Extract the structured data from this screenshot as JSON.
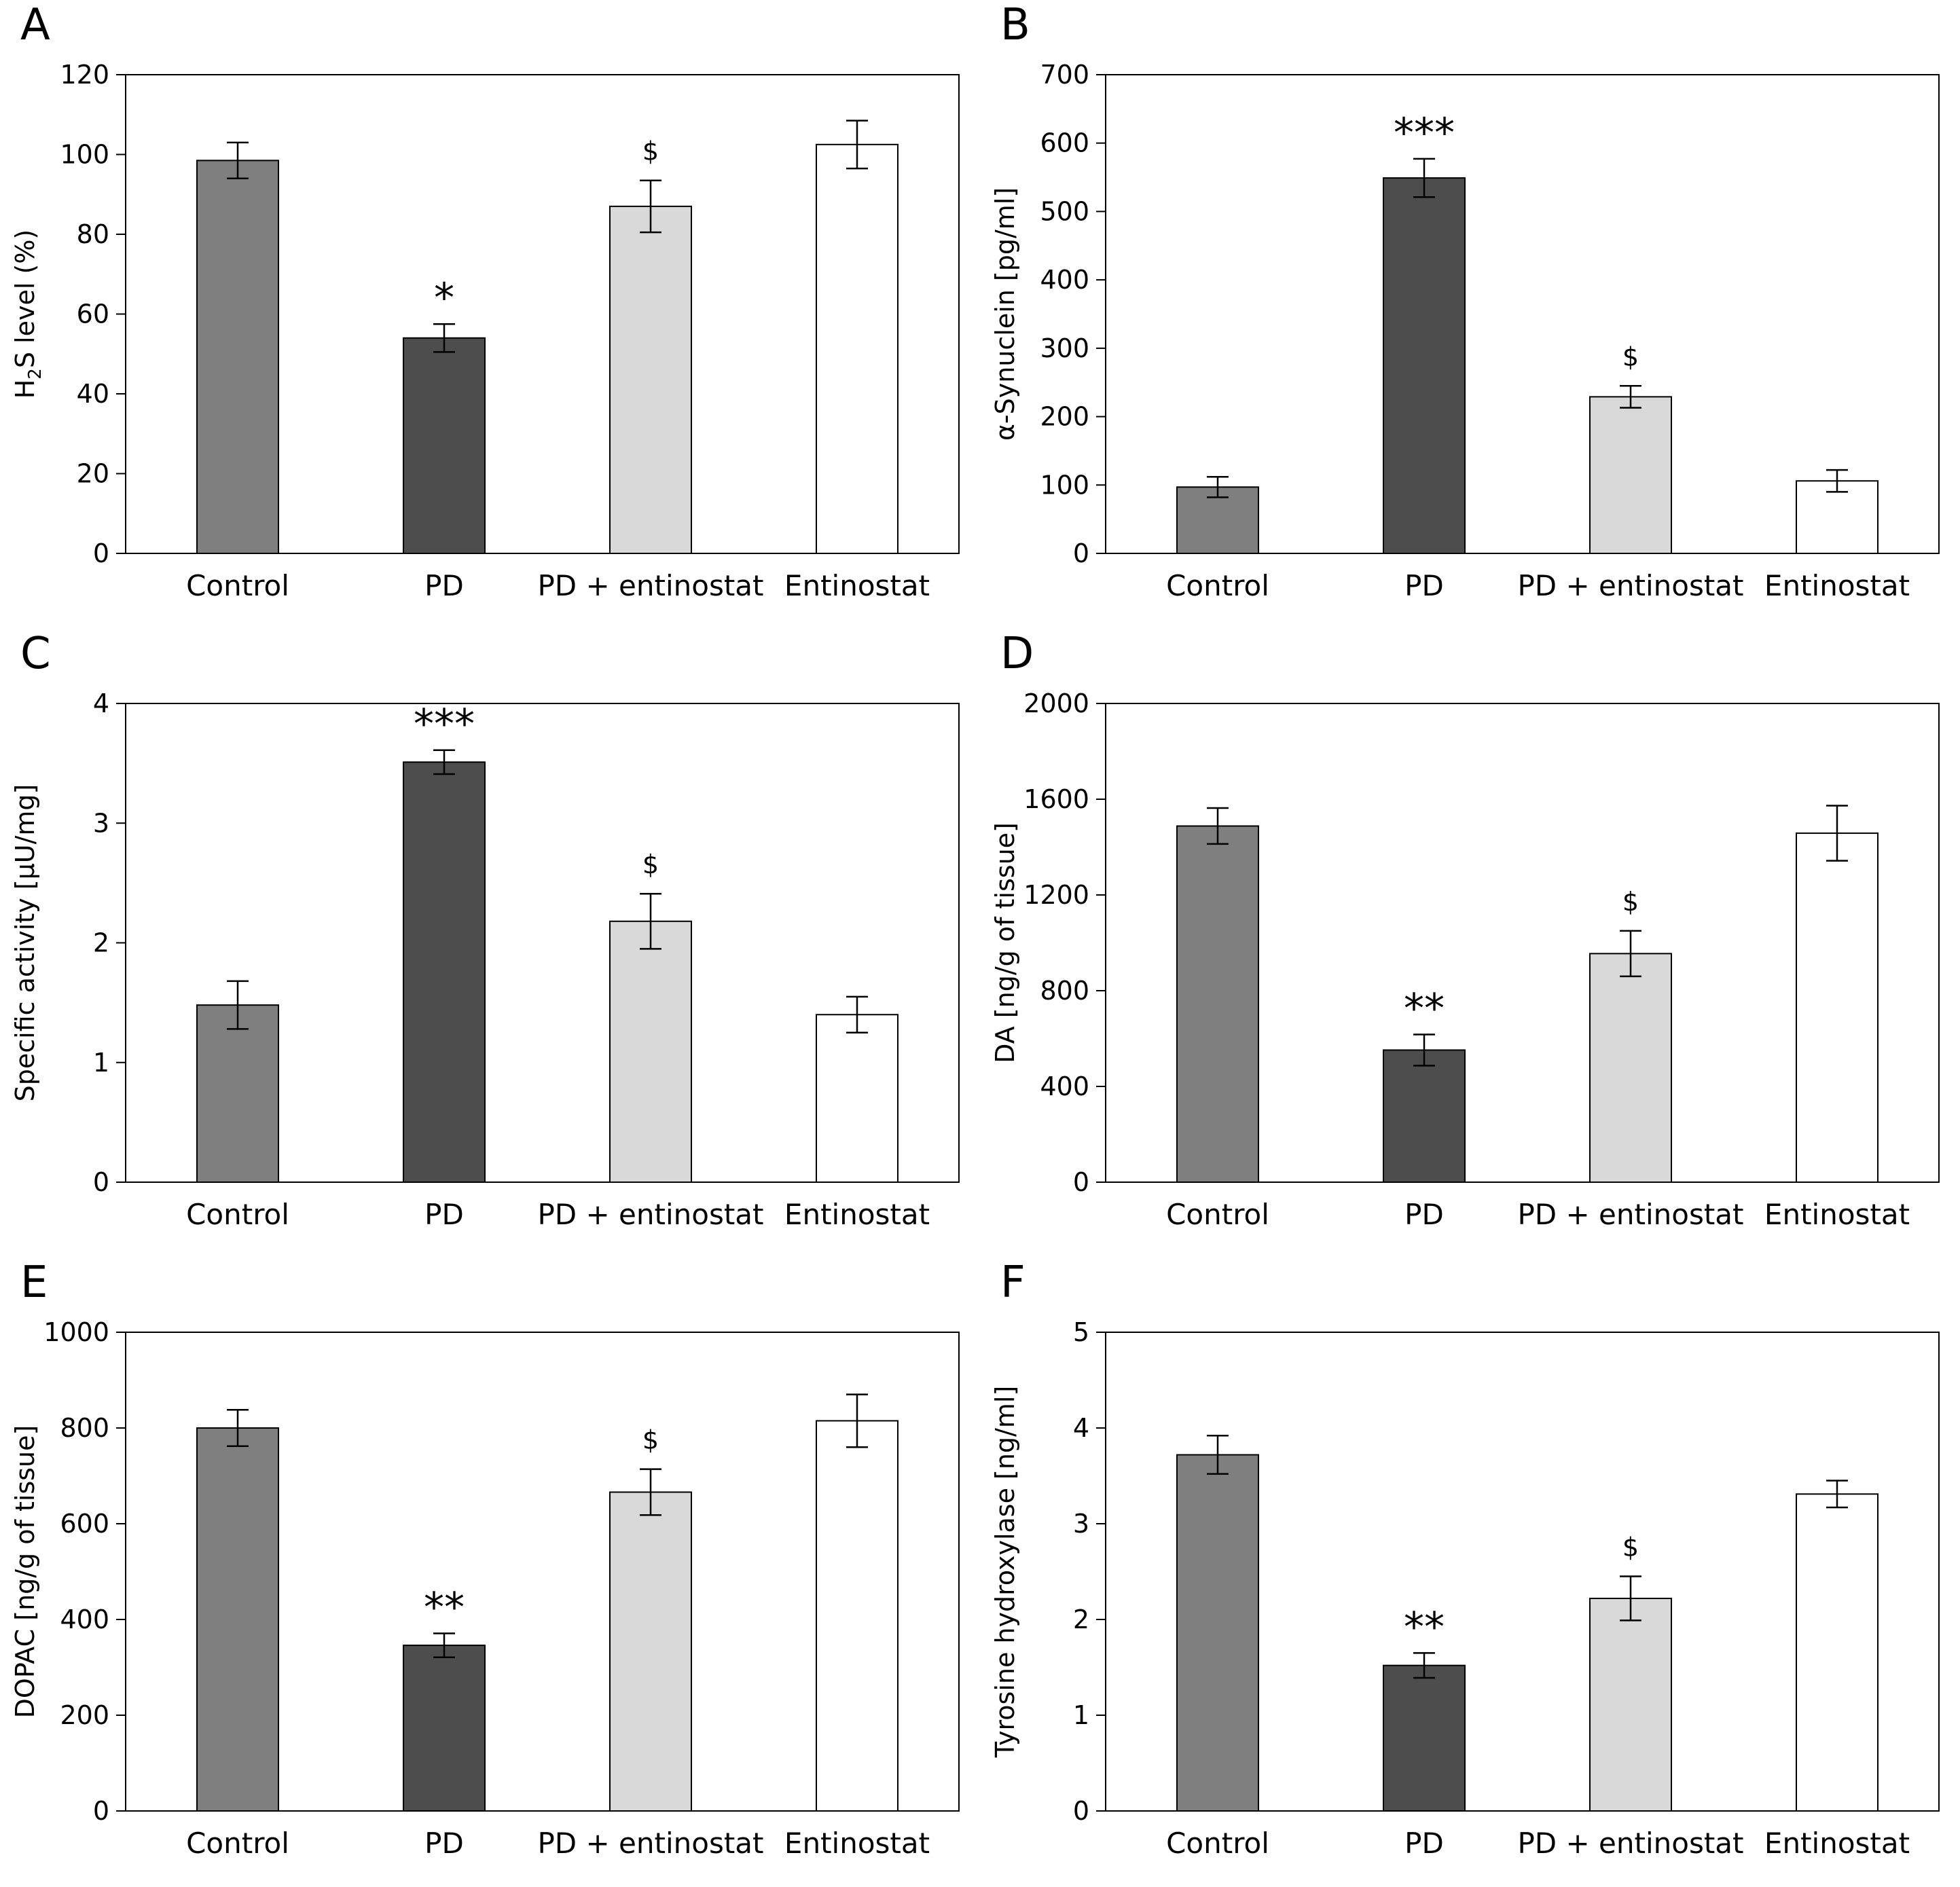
{
  "chart_data": [
    {
      "panel": "A",
      "type": "bar",
      "ylabel_main": "H",
      "ylabel_sub": "2",
      "ylabel_rest": "S level (%)",
      "ylim": [
        0,
        120
      ],
      "yticks": [
        0,
        20,
        40,
        60,
        80,
        100,
        120
      ],
      "categories": [
        "Control",
        "PD",
        "PD + entinostat",
        "Entinostat"
      ],
      "values": [
        98.5,
        54,
        87,
        102.5
      ],
      "errors": [
        4.5,
        3.5,
        6.5,
        6
      ],
      "significance": [
        "",
        "*",
        "$",
        ""
      ],
      "colors": [
        "#7f7f7f",
        "#4d4d4d",
        "#d9d9d9",
        "#ffffff"
      ]
    },
    {
      "panel": "B",
      "type": "bar",
      "ylabel_main": "α-Synuclein [pg/ml]",
      "ylim": [
        0,
        700
      ],
      "yticks": [
        0,
        100,
        200,
        300,
        400,
        500,
        600,
        700
      ],
      "categories": [
        "Control",
        "PD",
        "PD + entinostat",
        "Entinostat"
      ],
      "values": [
        97,
        549,
        229,
        106
      ],
      "errors": [
        15,
        28,
        16,
        16
      ],
      "significance": [
        "",
        "***",
        "$",
        ""
      ],
      "colors": [
        "#7f7f7f",
        "#4d4d4d",
        "#d9d9d9",
        "#ffffff"
      ]
    },
    {
      "panel": "C",
      "type": "bar",
      "ylabel_main": "Specific activity [μU/mg]",
      "ylim": [
        0,
        4
      ],
      "yticks": [
        0,
        1,
        2,
        3,
        4
      ],
      "categories": [
        "Control",
        "PD",
        "PD + entinostat",
        "Entinostat"
      ],
      "values": [
        1.48,
        3.51,
        2.18,
        1.4
      ],
      "errors": [
        0.2,
        0.1,
        0.23,
        0.15
      ],
      "significance": [
        "",
        "***",
        "$",
        ""
      ],
      "colors": [
        "#7f7f7f",
        "#4d4d4d",
        "#d9d9d9",
        "#ffffff"
      ]
    },
    {
      "panel": "D",
      "type": "bar",
      "ylabel_main": "DA [ng/g of tissue]",
      "ylim": [
        0,
        2000
      ],
      "yticks": [
        0,
        400,
        800,
        1200,
        1600,
        2000
      ],
      "categories": [
        "Control",
        "PD",
        "PD + entinostat",
        "Entinostat"
      ],
      "values": [
        1488,
        552,
        955,
        1458
      ],
      "errors": [
        75,
        65,
        95,
        115
      ],
      "significance": [
        "",
        "**",
        "$",
        ""
      ],
      "colors": [
        "#7f7f7f",
        "#4d4d4d",
        "#d9d9d9",
        "#ffffff"
      ]
    },
    {
      "panel": "E",
      "type": "bar",
      "ylabel_main": "DOPAC [ng/g of tissue]",
      "ylim": [
        0,
        1000
      ],
      "yticks": [
        0,
        200,
        400,
        600,
        800,
        1000
      ],
      "categories": [
        "Control",
        "PD",
        "PD + entinostat",
        "Entinostat"
      ],
      "values": [
        800,
        346,
        666,
        815
      ],
      "errors": [
        38,
        25,
        48,
        55
      ],
      "significance": [
        "",
        "**",
        "$",
        ""
      ],
      "colors": [
        "#7f7f7f",
        "#4d4d4d",
        "#d9d9d9",
        "#ffffff"
      ]
    },
    {
      "panel": "F",
      "type": "bar",
      "ylabel_main": "Tyrosine hydroxylase [ng/ml]",
      "ylim": [
        0,
        5
      ],
      "yticks": [
        0,
        1,
        2,
        3,
        4,
        5
      ],
      "categories": [
        "Control",
        "PD",
        "PD + entinostat",
        "Entinostat"
      ],
      "values": [
        3.72,
        1.52,
        2.22,
        3.31
      ],
      "errors": [
        0.2,
        0.13,
        0.23,
        0.14
      ],
      "significance": [
        "",
        "**",
        "$",
        ""
      ],
      "colors": [
        "#7f7f7f",
        "#4d4d4d",
        "#d9d9d9",
        "#ffffff"
      ]
    }
  ]
}
